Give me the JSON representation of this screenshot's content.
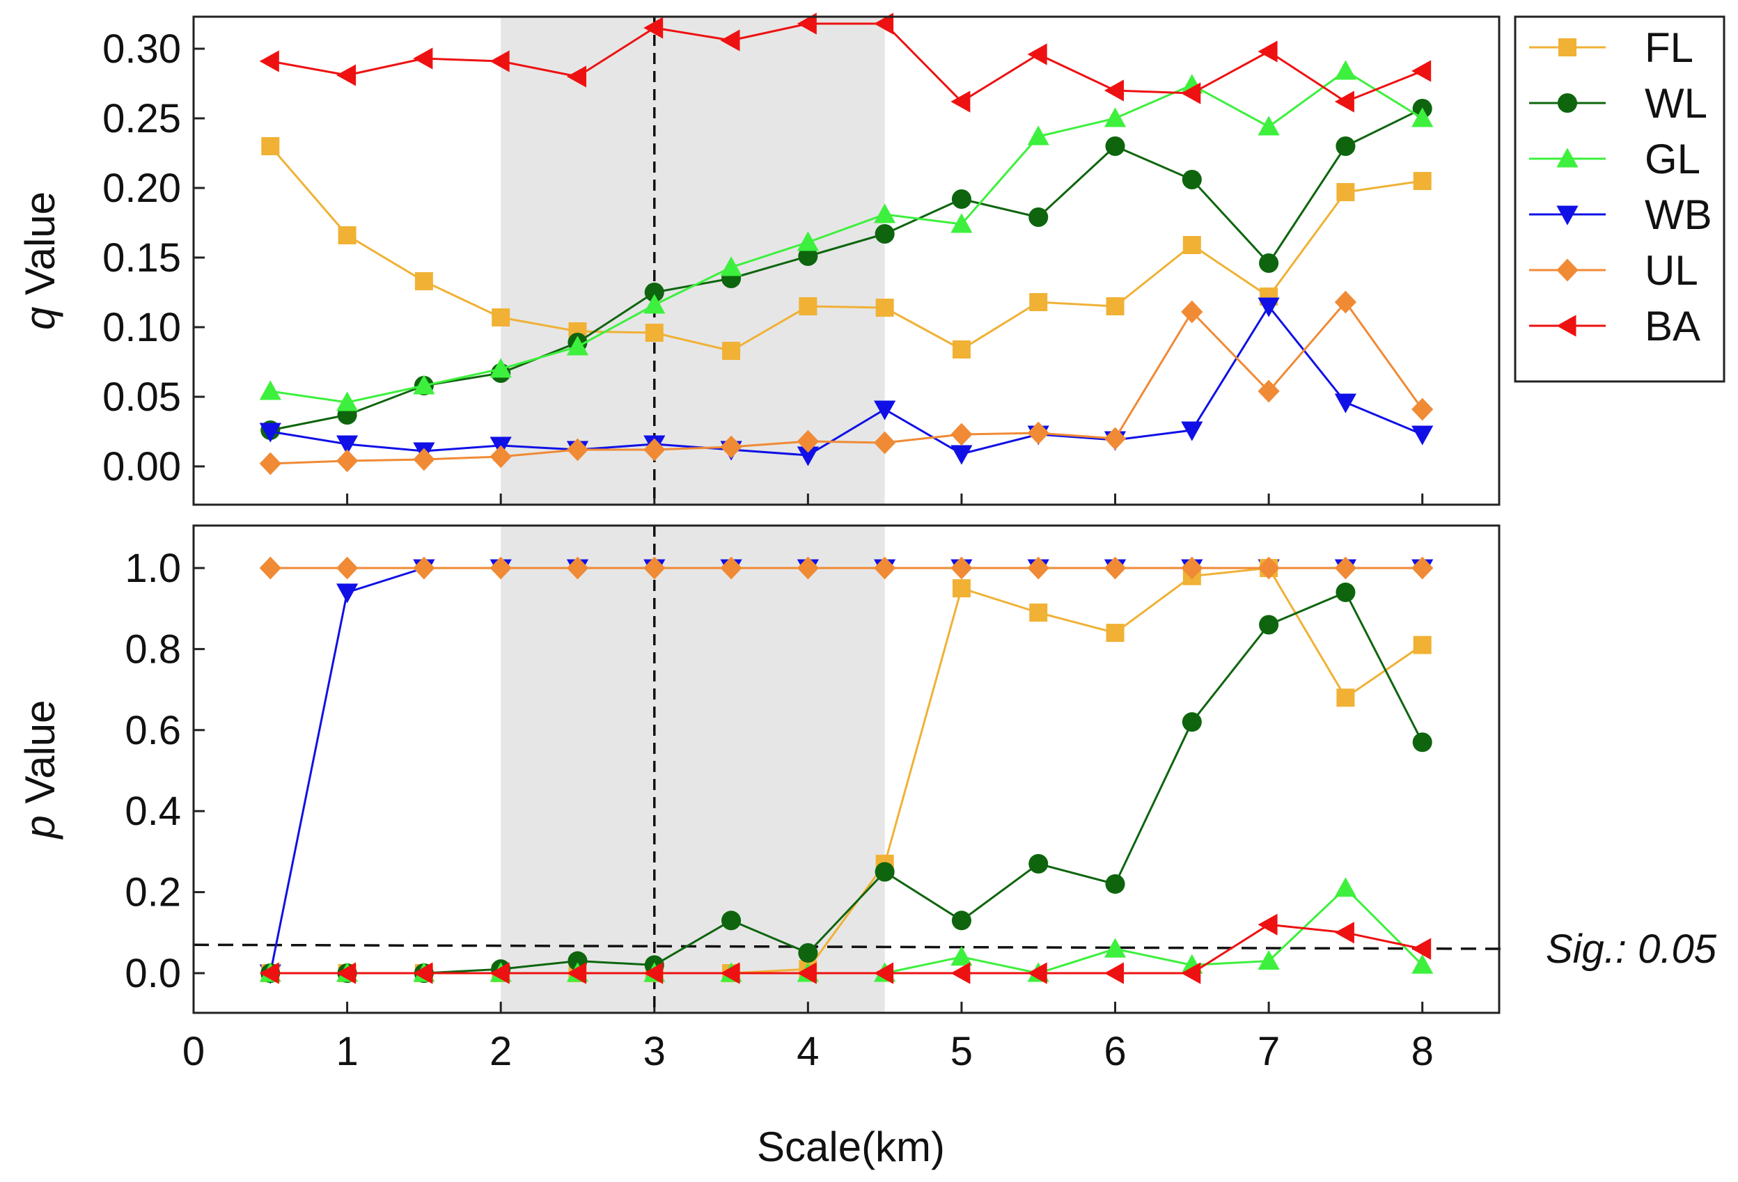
{
  "chart_data": [
    {
      "type": "line",
      "panel": "top",
      "ylabel_italic": "q",
      "ylabel_rest": " Value",
      "xlabel": "",
      "xlim": [
        0,
        8.5
      ],
      "ylim": [
        -0.022,
        0.325
      ],
      "yticks": [
        0.0,
        0.05,
        0.1,
        0.15,
        0.2,
        0.25,
        0.3
      ],
      "ytick_labels": [
        "0.00",
        "0.05",
        "0.10",
        "0.15",
        "0.20",
        "0.25",
        "0.30"
      ],
      "x": [
        0.5,
        1,
        1.5,
        2,
        2.5,
        3,
        3.5,
        4,
        4.5,
        5,
        5.5,
        6,
        6.5,
        7,
        7.5,
        8
      ],
      "shaded_region": [
        2,
        4.5
      ],
      "vline": 3,
      "series": [
        {
          "name": "FL",
          "color": "#f0b135",
          "marker": "square",
          "values": [
            0.23,
            0.166,
            0.133,
            0.107,
            0.097,
            0.096,
            0.083,
            0.115,
            0.114,
            0.084,
            0.118,
            0.115,
            0.159,
            0.122,
            0.197,
            0.205
          ]
        },
        {
          "name": "WL",
          "color": "#0e650e",
          "marker": "circle",
          "values": [
            0.026,
            0.037,
            0.058,
            0.067,
            0.089,
            0.125,
            0.135,
            0.151,
            0.167,
            0.192,
            0.179,
            0.23,
            0.206,
            0.146,
            0.23,
            0.257
          ]
        },
        {
          "name": "GL",
          "color": "#3df03d",
          "marker": "triangle-up",
          "values": [
            0.054,
            0.046,
            0.058,
            0.07,
            0.086,
            0.116,
            0.143,
            0.161,
            0.181,
            0.174,
            0.237,
            0.25,
            0.274,
            0.244,
            0.284,
            0.25
          ]
        },
        {
          "name": "WB",
          "color": "#1010e6",
          "marker": "triangle-down",
          "values": [
            0.025,
            0.016,
            0.011,
            0.015,
            0.012,
            0.016,
            0.012,
            0.008,
            0.041,
            0.009,
            0.023,
            0.019,
            0.026,
            0.115,
            0.046,
            0.023
          ]
        },
        {
          "name": "UL",
          "color": "#f08a35",
          "marker": "diamond",
          "values": [
            0.002,
            0.004,
            0.005,
            0.007,
            0.012,
            0.012,
            0.014,
            0.018,
            0.017,
            0.023,
            0.024,
            0.02,
            0.111,
            0.054,
            0.118,
            0.041
          ]
        },
        {
          "name": "BA",
          "color": "#ee1111",
          "marker": "triangle-left",
          "values": [
            0.291,
            0.281,
            0.293,
            0.291,
            0.28,
            0.315,
            0.306,
            0.318,
            0.318,
            0.262,
            0.296,
            0.27,
            0.268,
            0.298,
            0.262,
            0.284
          ]
        }
      ]
    },
    {
      "type": "line",
      "panel": "bottom",
      "ylabel_italic": "p",
      "ylabel_rest": " Value",
      "xlabel": "Scale(km)",
      "xlim": [
        0,
        8.5
      ],
      "ylim": [
        -0.1,
        1.1
      ],
      "yticks": [
        0.0,
        0.2,
        0.4,
        0.6,
        0.8,
        1.0
      ],
      "ytick_labels": [
        "0.0",
        "0.2",
        "0.4",
        "0.6",
        "0.8",
        "1.0"
      ],
      "xticks": [
        0,
        1,
        2,
        3,
        4,
        5,
        6,
        7,
        8
      ],
      "xtick_labels": [
        "0",
        "1",
        "2",
        "3",
        "4",
        "5",
        "6",
        "7",
        "8"
      ],
      "x": [
        0.5,
        1,
        1.5,
        2,
        2.5,
        3,
        3.5,
        4,
        4.5,
        5,
        5.5,
        6,
        6.5,
        7,
        7.5,
        8
      ],
      "shaded_region": [
        2,
        4.5
      ],
      "vline": 3,
      "sig_line": {
        "y_start": 0.07,
        "y_end": 0.06,
        "label": "Sig.: 0.05"
      },
      "series": [
        {
          "name": "WB",
          "color": "#1010e6",
          "marker": "triangle-down",
          "values": [
            0.0,
            0.94,
            1.0,
            1.0,
            1.0,
            1.0,
            1.0,
            1.0,
            1.0,
            1.0,
            1.0,
            1.0,
            1.0,
            1.0,
            1.0,
            1.0
          ]
        },
        {
          "name": "FL",
          "color": "#f0b135",
          "marker": "square",
          "values": [
            0.0,
            0.0,
            0.0,
            0.0,
            0.0,
            0.0,
            0.0,
            0.01,
            0.27,
            0.95,
            0.89,
            0.84,
            0.98,
            1.0,
            0.68,
            0.81
          ]
        },
        {
          "name": "WL",
          "color": "#0e650e",
          "marker": "circle",
          "values": [
            0.0,
            0.0,
            0.0,
            0.01,
            0.03,
            0.02,
            0.13,
            0.05,
            0.25,
            0.13,
            0.27,
            0.22,
            0.62,
            0.86,
            0.94,
            0.57
          ]
        },
        {
          "name": "GL",
          "color": "#3df03d",
          "marker": "triangle-up",
          "values": [
            0.0,
            0.0,
            0.0,
            0.0,
            0.0,
            0.0,
            0.0,
            0.0,
            0.0,
            0.04,
            0.0,
            0.06,
            0.02,
            0.03,
            0.21,
            0.02
          ]
        },
        {
          "name": "UL",
          "color": "#f08a35",
          "marker": "diamond",
          "values": [
            1.0,
            1.0,
            1.0,
            1.0,
            1.0,
            1.0,
            1.0,
            1.0,
            1.0,
            1.0,
            1.0,
            1.0,
            1.0,
            1.0,
            1.0,
            1.0
          ]
        },
        {
          "name": "BA",
          "color": "#ee1111",
          "marker": "triangle-left",
          "values": [
            0.0,
            0.0,
            0.0,
            0.0,
            0.0,
            0.0,
            0.0,
            0.0,
            0.0,
            0.0,
            0.0,
            0.0,
            0.0,
            0.12,
            0.1,
            0.06
          ]
        }
      ]
    }
  ],
  "legend": {
    "placement": "right",
    "entries": [
      {
        "label": "FL",
        "color": "#f0b135",
        "marker": "square"
      },
      {
        "label": "WL",
        "color": "#0e650e",
        "marker": "circle"
      },
      {
        "label": "GL",
        "color": "#3df03d",
        "marker": "triangle-up"
      },
      {
        "label": "WB",
        "color": "#1010e6",
        "marker": "triangle-down"
      },
      {
        "label": "UL",
        "color": "#f08a35",
        "marker": "diamond"
      },
      {
        "label": "BA",
        "color": "#ee1111",
        "marker": "triangle-left"
      }
    ]
  },
  "colors": {
    "shade": "#e6e6e6",
    "axis": "#222222",
    "guide": "#111111"
  }
}
